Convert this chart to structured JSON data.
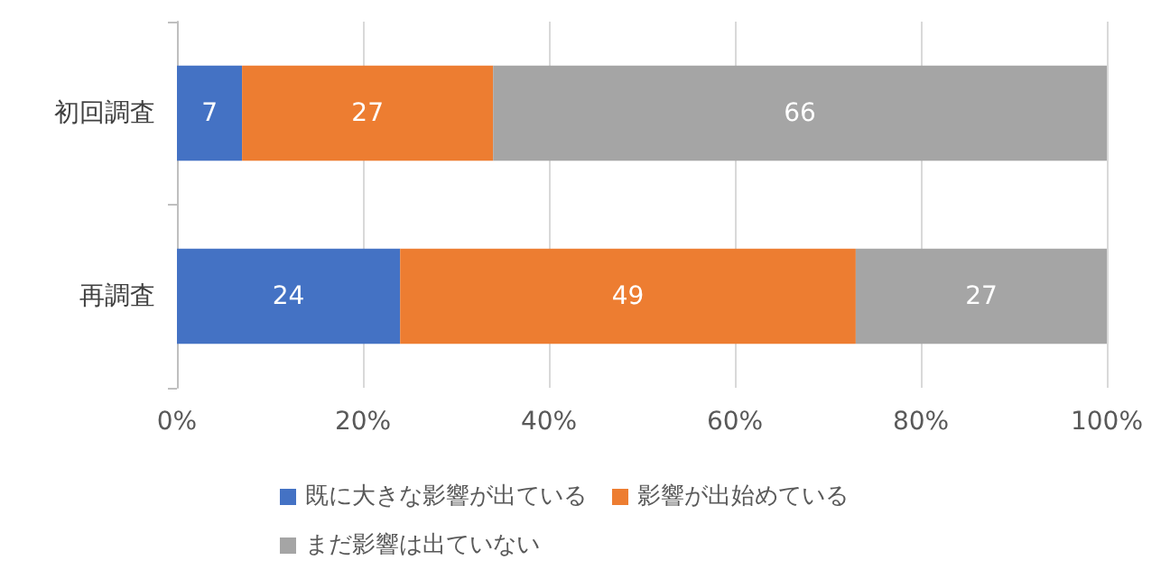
{
  "chart_data": {
    "type": "bar",
    "orientation": "horizontal",
    "stacked": true,
    "categories": [
      "初回調査",
      "再調査"
    ],
    "series": [
      {
        "name": "既に大きな影響が出ている",
        "color": "#4472c4",
        "values": [
          7,
          24
        ]
      },
      {
        "name": "影響が出始めている",
        "color": "#ed7d31",
        "values": [
          27,
          49
        ]
      },
      {
        "name": "まだ影響は出ていない",
        "color": "#a5a5a5",
        "values": [
          66,
          27
        ]
      }
    ],
    "xlim": [
      0,
      100
    ],
    "xticks": [
      {
        "value": 0,
        "label": "0%"
      },
      {
        "value": 20,
        "label": "20%"
      },
      {
        "value": 40,
        "label": "40%"
      },
      {
        "value": 60,
        "label": "60%"
      },
      {
        "value": 80,
        "label": "80%"
      },
      {
        "value": 100,
        "label": "100%"
      }
    ],
    "grid": "x",
    "legend": "bottom",
    "data_labels": true
  }
}
